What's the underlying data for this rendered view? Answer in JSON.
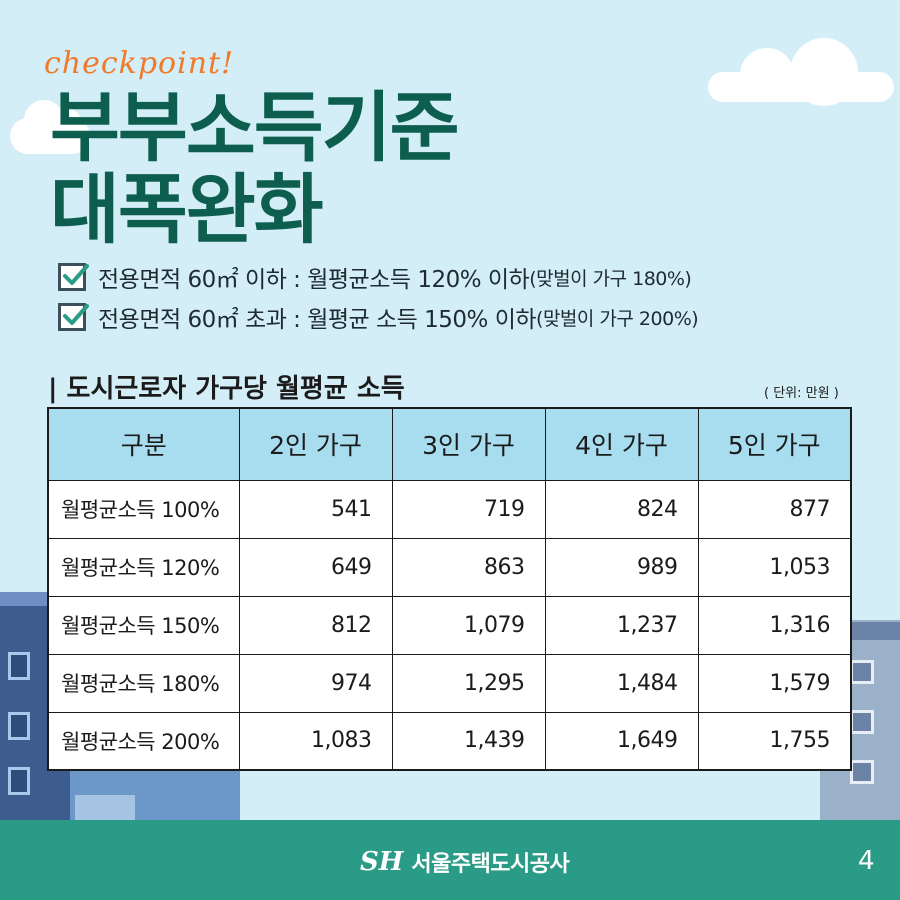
{
  "header": {
    "tagline": "checkpoint!",
    "title_line1": "부부소득기준",
    "title_line2": "대폭완화"
  },
  "criteria": [
    {
      "main": "전용면적 60㎡ 이하 : 월평균소득 120% 이하",
      "sub": "(맞벌이 가구 180%)"
    },
    {
      "main": "전용면적 60㎡ 초과 : 월평균 소득 150% 이하",
      "sub": "(맞벌이 가구 200%)"
    }
  ],
  "section": {
    "title": "| 도시근로자 가구당 월평균 소득",
    "unit_note": "( 단위: 만원 )"
  },
  "table": {
    "headers": [
      "구분",
      "2인 가구",
      "3인 가구",
      "4인 가구",
      "5인 가구"
    ],
    "rows": [
      {
        "label": "월평균소득 100%",
        "values": [
          "541",
          "719",
          "824",
          "877"
        ]
      },
      {
        "label": "월평균소득 120%",
        "values": [
          "649",
          "863",
          "989",
          "1,053"
        ]
      },
      {
        "label": "월평균소득 150%",
        "values": [
          "812",
          "1,079",
          "1,237",
          "1,316"
        ]
      },
      {
        "label": "월평균소득 180%",
        "values": [
          "974",
          "1,295",
          "1,484",
          "1,579"
        ]
      },
      {
        "label": "월평균소득 200%",
        "values": [
          "1,083",
          "1,439",
          "1,649",
          "1,755"
        ]
      }
    ]
  },
  "footer": {
    "logo": "SH",
    "brand": "서울주택도시공사",
    "page": "4"
  },
  "colors": {
    "background": "#d4eef7",
    "title": "#0e5e4f",
    "tagline": "#ef7a2a",
    "table_header": "#a8dcef",
    "footer": "#2a9b86"
  },
  "icons": [
    "checkbox-icon",
    "cloud-icon",
    "building-icon"
  ]
}
